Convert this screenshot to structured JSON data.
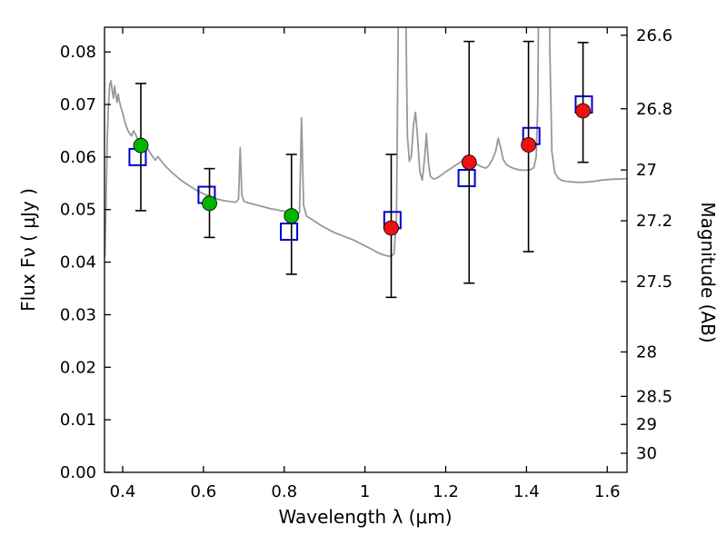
{
  "chart_data": {
    "type": "line",
    "title": "",
    "xlabel": "Wavelength  λ (μm)",
    "ylabel_left": "Flux  Fν  ( μJy )",
    "ylabel_right": "Magnitude (AB)",
    "xlim": [
      0.355,
      1.649
    ],
    "ylim": [
      0,
      0.0847
    ],
    "grid": false,
    "legend": "none",
    "axes_color": "#000000",
    "errorbar_color": "#000000",
    "x_ticks": [
      {
        "value": 0.4,
        "label": "0.4"
      },
      {
        "value": 0.6,
        "label": "0.6"
      },
      {
        "value": 0.8,
        "label": "0.8"
      },
      {
        "value": 1.0,
        "label": "1"
      },
      {
        "value": 1.2,
        "label": "1.2"
      },
      {
        "value": 1.4,
        "label": "1.4"
      },
      {
        "value": 1.6,
        "label": "1.6"
      }
    ],
    "y_ticks_left": [
      {
        "value": 0.0,
        "label": "0.00"
      },
      {
        "value": 0.01,
        "label": "0.01"
      },
      {
        "value": 0.02,
        "label": "0.02"
      },
      {
        "value": 0.03,
        "label": "0.03"
      },
      {
        "value": 0.04,
        "label": "0.04"
      },
      {
        "value": 0.05,
        "label": "0.05"
      },
      {
        "value": 0.06,
        "label": "0.06"
      },
      {
        "value": 0.07,
        "label": "0.07"
      },
      {
        "value": 0.08,
        "label": "0.08"
      }
    ],
    "y_ticks_right": [
      {
        "mag": 26.6,
        "label": "26.6"
      },
      {
        "mag": 26.8,
        "label": "26.8"
      },
      {
        "mag": 27.0,
        "label": "27"
      },
      {
        "mag": 27.2,
        "label": "27.2"
      },
      {
        "mag": 27.5,
        "label": "27.5"
      },
      {
        "mag": 28.0,
        "label": "28"
      },
      {
        "mag": 28.5,
        "label": "28.5"
      },
      {
        "mag": 29.0,
        "label": "29"
      },
      {
        "mag": 30.0,
        "label": "30"
      }
    ],
    "ab_zeropoint_ujy": 23.9,
    "spectrum": {
      "name": "model-spectrum",
      "color": "#999999",
      "points": [
        [
          0.356,
          0.041
        ],
        [
          0.358,
          0.048
        ],
        [
          0.36,
          0.056
        ],
        [
          0.362,
          0.064
        ],
        [
          0.365,
          0.07
        ],
        [
          0.368,
          0.0738
        ],
        [
          0.371,
          0.0745
        ],
        [
          0.374,
          0.0728
        ],
        [
          0.377,
          0.0712
        ],
        [
          0.38,
          0.0735
        ],
        [
          0.383,
          0.0718
        ],
        [
          0.386,
          0.0704
        ],
        [
          0.389,
          0.072
        ],
        [
          0.392,
          0.0706
        ],
        [
          0.396,
          0.0694
        ],
        [
          0.4,
          0.0684
        ],
        [
          0.404,
          0.0671
        ],
        [
          0.408,
          0.066
        ],
        [
          0.412,
          0.0652
        ],
        [
          0.417,
          0.0645
        ],
        [
          0.422,
          0.064
        ],
        [
          0.427,
          0.065
        ],
        [
          0.433,
          0.0641
        ],
        [
          0.439,
          0.0631
        ],
        [
          0.445,
          0.0622
        ],
        [
          0.451,
          0.063
        ],
        [
          0.457,
          0.0621
        ],
        [
          0.463,
          0.0614
        ],
        [
          0.469,
          0.0607
        ],
        [
          0.475,
          0.06
        ],
        [
          0.481,
          0.0594
        ],
        [
          0.487,
          0.0601
        ],
        [
          0.493,
          0.0595
        ],
        [
          0.5,
          0.0588
        ],
        [
          0.508,
          0.0581
        ],
        [
          0.516,
          0.0575
        ],
        [
          0.524,
          0.0569
        ],
        [
          0.532,
          0.0564
        ],
        [
          0.541,
          0.0558
        ],
        [
          0.55,
          0.0553
        ],
        [
          0.56,
          0.0548
        ],
        [
          0.57,
          0.0543
        ],
        [
          0.58,
          0.0538
        ],
        [
          0.59,
          0.0534
        ],
        [
          0.6,
          0.053
        ],
        [
          0.61,
          0.0527
        ],
        [
          0.62,
          0.0524
        ],
        [
          0.63,
          0.0521
        ],
        [
          0.64,
          0.0519
        ],
        [
          0.65,
          0.0517
        ],
        [
          0.66,
          0.0516
        ],
        [
          0.67,
          0.0515
        ],
        [
          0.68,
          0.0514
        ],
        [
          0.687,
          0.052
        ],
        [
          0.691,
          0.0618
        ],
        [
          0.695,
          0.0528
        ],
        [
          0.7,
          0.0516
        ],
        [
          0.71,
          0.0513
        ],
        [
          0.72,
          0.0511
        ],
        [
          0.73,
          0.0509
        ],
        [
          0.74,
          0.0507
        ],
        [
          0.75,
          0.0505
        ],
        [
          0.76,
          0.0503
        ],
        [
          0.77,
          0.0501
        ],
        [
          0.78,
          0.05
        ],
        [
          0.79,
          0.0498
        ],
        [
          0.8,
          0.0497
        ],
        [
          0.81,
          0.0495
        ],
        [
          0.82,
          0.0494
        ],
        [
          0.83,
          0.0492
        ],
        [
          0.838,
          0.0494
        ],
        [
          0.843,
          0.0675
        ],
        [
          0.848,
          0.0508
        ],
        [
          0.855,
          0.0488
        ],
        [
          0.865,
          0.0483
        ],
        [
          0.875,
          0.0478
        ],
        [
          0.885,
          0.0473
        ],
        [
          0.895,
          0.0468
        ],
        [
          0.905,
          0.0464
        ],
        [
          0.915,
          0.046
        ],
        [
          0.925,
          0.0456
        ],
        [
          0.935,
          0.0453
        ],
        [
          0.945,
          0.045
        ],
        [
          0.955,
          0.0447
        ],
        [
          0.965,
          0.0444
        ],
        [
          0.975,
          0.0441
        ],
        [
          0.985,
          0.0437
        ],
        [
          0.995,
          0.0433
        ],
        [
          1.005,
          0.0429
        ],
        [
          1.015,
          0.0425
        ],
        [
          1.025,
          0.0421
        ],
        [
          1.035,
          0.0417
        ],
        [
          1.045,
          0.0414
        ],
        [
          1.055,
          0.0412
        ],
        [
          1.065,
          0.0411
        ],
        [
          1.072,
          0.0416
        ],
        [
          1.078,
          0.0485
        ],
        [
          1.083,
          0.09
        ],
        [
          1.088,
          0.15
        ],
        [
          1.094,
          0.16
        ],
        [
          1.1,
          0.095
        ],
        [
          1.105,
          0.064
        ],
        [
          1.11,
          0.0592
        ],
        [
          1.115,
          0.0602
        ],
        [
          1.12,
          0.066
        ],
        [
          1.125,
          0.0685
        ],
        [
          1.13,
          0.064
        ],
        [
          1.136,
          0.0572
        ],
        [
          1.142,
          0.0556
        ],
        [
          1.148,
          0.06
        ],
        [
          1.152,
          0.0645
        ],
        [
          1.157,
          0.059
        ],
        [
          1.162,
          0.0563
        ],
        [
          1.17,
          0.0558
        ],
        [
          1.18,
          0.0561
        ],
        [
          1.19,
          0.0566
        ],
        [
          1.2,
          0.0572
        ],
        [
          1.21,
          0.0577
        ],
        [
          1.22,
          0.0582
        ],
        [
          1.23,
          0.0587
        ],
        [
          1.24,
          0.0592
        ],
        [
          1.25,
          0.0596
        ],
        [
          1.258,
          0.0598
        ],
        [
          1.266,
          0.0593
        ],
        [
          1.274,
          0.0588
        ],
        [
          1.282,
          0.0584
        ],
        [
          1.29,
          0.0581
        ],
        [
          1.3,
          0.0579
        ],
        [
          1.308,
          0.0585
        ],
        [
          1.316,
          0.0596
        ],
        [
          1.324,
          0.0612
        ],
        [
          1.33,
          0.0636
        ],
        [
          1.336,
          0.0618
        ],
        [
          1.342,
          0.0596
        ],
        [
          1.35,
          0.0586
        ],
        [
          1.36,
          0.0581
        ],
        [
          1.37,
          0.0578
        ],
        [
          1.38,
          0.0576
        ],
        [
          1.39,
          0.0575
        ],
        [
          1.4,
          0.0575
        ],
        [
          1.41,
          0.0576
        ],
        [
          1.418,
          0.058
        ],
        [
          1.424,
          0.06
        ],
        [
          1.428,
          0.07
        ],
        [
          1.432,
          0.11
        ],
        [
          1.438,
          0.16
        ],
        [
          1.446,
          0.17
        ],
        [
          1.452,
          0.145
        ],
        [
          1.458,
          0.08
        ],
        [
          1.463,
          0.061
        ],
        [
          1.47,
          0.057
        ],
        [
          1.478,
          0.056
        ],
        [
          1.486,
          0.0556
        ],
        [
          1.495,
          0.0554
        ],
        [
          1.51,
          0.0553
        ],
        [
          1.525,
          0.0552
        ],
        [
          1.54,
          0.0552
        ],
        [
          1.555,
          0.0553
        ],
        [
          1.57,
          0.0554
        ],
        [
          1.585,
          0.0556
        ],
        [
          1.6,
          0.0557
        ],
        [
          1.615,
          0.0558
        ],
        [
          1.632,
          0.0558
        ],
        [
          1.649,
          0.0559
        ]
      ]
    },
    "observed_optical": {
      "name": "observed-optical",
      "marker": "filled-circle",
      "color": "#00b400",
      "points": [
        {
          "x": 0.445,
          "y": 0.0622,
          "ylo": 0.0498,
          "yhi": 0.074
        },
        {
          "x": 0.615,
          "y": 0.0512,
          "ylo": 0.0447,
          "yhi": 0.0578
        },
        {
          "x": 0.818,
          "y": 0.0488,
          "ylo": 0.0377,
          "yhi": 0.0605
        }
      ]
    },
    "observed_infrared": {
      "name": "observed-infrared",
      "marker": "filled-circle",
      "color": "#ee1111",
      "points": [
        {
          "x": 1.065,
          "y": 0.0465,
          "ylo": 0.0333,
          "yhi": 0.0605
        },
        {
          "x": 1.258,
          "y": 0.059,
          "ylo": 0.036,
          "yhi": 0.082
        },
        {
          "x": 1.405,
          "y": 0.0623,
          "ylo": 0.042,
          "yhi": 0.082
        },
        {
          "x": 1.54,
          "y": 0.0688,
          "ylo": 0.059,
          "yhi": 0.0818
        }
      ]
    },
    "model_photometry": {
      "name": "model-photometry",
      "marker": "open-square",
      "color": "#0000cd",
      "points": [
        {
          "x": 0.437,
          "y": 0.06
        },
        {
          "x": 0.608,
          "y": 0.0528
        },
        {
          "x": 0.812,
          "y": 0.0458
        },
        {
          "x": 1.068,
          "y": 0.048
        },
        {
          "x": 1.252,
          "y": 0.056
        },
        {
          "x": 1.412,
          "y": 0.064
        },
        {
          "x": 1.542,
          "y": 0.07
        }
      ]
    }
  }
}
